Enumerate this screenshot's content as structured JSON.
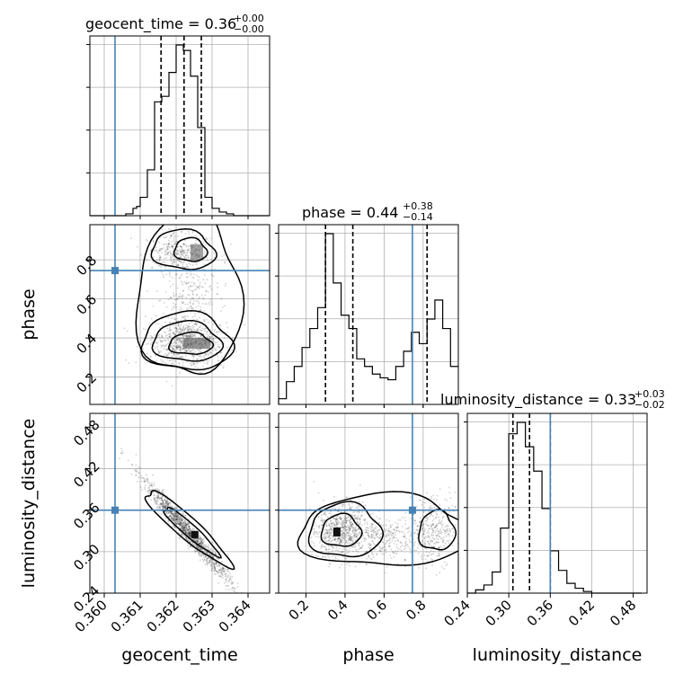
{
  "chart_data": {
    "type": "corner",
    "parameters": [
      "geocent_time",
      "phase",
      "luminosity_distance"
    ],
    "truths": {
      "geocent_time": 0.3603,
      "phase": 0.745,
      "luminosity_distance": 0.36
    },
    "axes": {
      "geocent_time": {
        "range": [
          0.3596,
          0.3646
        ],
        "ticks": [
          0.36,
          0.361,
          0.362,
          0.363,
          0.364
        ],
        "tick_labels": [
          "0.360",
          "0.361",
          "0.362",
          "0.363",
          "0.364"
        ]
      },
      "phase": {
        "range": [
          0.06,
          0.98
        ],
        "ticks": [
          0.2,
          0.4,
          0.6,
          0.8
        ],
        "tick_labels": [
          "0.2",
          "0.4",
          "0.6",
          "0.8"
        ]
      },
      "luminosity_distance": {
        "range": [
          0.24,
          0.5
        ],
        "ticks": [
          0.24,
          0.3,
          0.36,
          0.42,
          0.48
        ],
        "tick_labels": [
          "0.24",
          "0.30",
          "0.36",
          "0.42",
          "0.48"
        ]
      }
    },
    "titles": {
      "geocent_time": {
        "prefix": "geocent_time = 0.36",
        "plus": "+0.00",
        "minus": "−0.00"
      },
      "phase": {
        "prefix": "phase = 0.44",
        "plus": "+0.38",
        "minus": "−0.14"
      },
      "luminosity_distance": {
        "prefix": "luminosity_distance = 0.33",
        "plus": "+0.03",
        "minus": "−0.02"
      }
    },
    "quantiles": {
      "geocent_time": [
        0.36158,
        0.36222,
        0.3627
      ],
      "phase": [
        0.3,
        0.44,
        0.82
      ],
      "luminosity_distance": [
        0.306,
        0.33,
        0.36
      ]
    },
    "histograms": {
      "geocent_time": {
        "edges": [
          0.3596,
          0.3597,
          0.3598,
          0.3599,
          0.36,
          0.3601,
          0.3602,
          0.3603,
          0.3604,
          0.3605,
          0.3606,
          0.3607,
          0.3608,
          0.3609,
          0.361,
          0.3611,
          0.3612,
          0.3613,
          0.3614,
          0.3615,
          0.3616,
          0.3617,
          0.3618,
          0.3619,
          0.362,
          0.3621,
          0.3622,
          0.3623,
          0.3624,
          0.3625,
          0.3626,
          0.3627,
          0.3628,
          0.3629,
          0.363,
          0.3631,
          0.3632,
          0.3633,
          0.3634,
          0.3635,
          0.3636,
          0.3637,
          0.3638,
          0.3639,
          0.364,
          0.3641,
          0.3642,
          0.3643,
          0.3644,
          0.3645,
          0.3646
        ],
        "counts": [
          0,
          0,
          0,
          0,
          0,
          0,
          0,
          0,
          0,
          0,
          1,
          1,
          4,
          5,
          10,
          10,
          25,
          25,
          62,
          62,
          65,
          65,
          78,
          78,
          93,
          93,
          90,
          90,
          76,
          76,
          48,
          48,
          10,
          10,
          4,
          4,
          2,
          2,
          1,
          1,
          0,
          0,
          0,
          0,
          0,
          0,
          0,
          0,
          0,
          0
        ]
      },
      "phase": {
        "edges": [
          0.06,
          0.1,
          0.14,
          0.18,
          0.22,
          0.26,
          0.3,
          0.34,
          0.38,
          0.42,
          0.46,
          0.5,
          0.54,
          0.58,
          0.62,
          0.66,
          0.7,
          0.74,
          0.78,
          0.82,
          0.86,
          0.9,
          0.94,
          0.98
        ],
        "counts": [
          3,
          12,
          20,
          30,
          40,
          51,
          90,
          64,
          47,
          40,
          24,
          20,
          16,
          14,
          13,
          20,
          28,
          38,
          32,
          45,
          55,
          40,
          20
        ]
      },
      "luminosity_distance": {
        "edges": [
          0.24,
          0.252,
          0.264,
          0.276,
          0.288,
          0.3,
          0.312,
          0.324,
          0.336,
          0.348,
          0.36,
          0.372,
          0.384,
          0.396,
          0.408,
          0.42,
          0.432,
          0.444,
          0.456,
          0.468,
          0.48,
          0.492
        ],
        "counts": [
          0,
          2,
          5,
          13,
          40,
          98,
          105,
          90,
          75,
          52,
          26,
          14,
          6,
          3,
          1,
          0,
          0,
          0,
          0,
          0,
          0
        ]
      }
    },
    "scatter_pairs": [
      {
        "x": "geocent_time",
        "y": "phase"
      },
      {
        "x": "geocent_time",
        "y": "luminosity_distance"
      },
      {
        "x": "phase",
        "y": "luminosity_distance"
      }
    ],
    "grid": true
  }
}
